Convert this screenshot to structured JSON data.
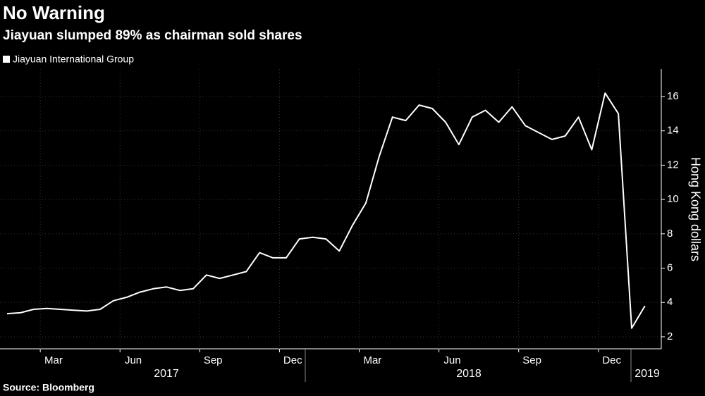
{
  "chart_data": {
    "type": "line",
    "title": "No Warning",
    "subtitle": "Jiayuan slumped 89% as chairman sold shares",
    "source": "Source: Bloomberg",
    "y_label": "Hong Kong dollars",
    "categories": [
      null,
      null,
      null,
      "Mar",
      null,
      null,
      null,
      null,
      null,
      "Jun",
      null,
      null,
      null,
      null,
      null,
      "Sep",
      null,
      null,
      null,
      null,
      null,
      "Dec",
      null,
      null,
      null,
      null,
      null,
      "Mar",
      null,
      null,
      null,
      null,
      null,
      "Jun",
      null,
      null,
      null,
      null,
      null,
      "Sep",
      null,
      null,
      null,
      null,
      null,
      "Dec",
      null,
      null,
      null
    ],
    "years": [
      "2017",
      "2018",
      "2019"
    ],
    "series": [
      {
        "name": "Jiayuan International Group",
        "color": "#ffffff",
        "values": [
          3.35,
          3.4,
          3.6,
          3.65,
          3.6,
          3.55,
          3.5,
          3.6,
          4.1,
          4.3,
          4.6,
          4.8,
          4.9,
          4.7,
          4.8,
          5.6,
          5.4,
          5.6,
          5.8,
          6.9,
          6.6,
          6.6,
          7.7,
          7.8,
          7.7,
          7.0,
          8.5,
          9.8,
          12.5,
          14.8,
          14.6,
          15.5,
          15.3,
          14.5,
          13.2,
          14.8,
          15.2,
          14.5,
          15.4,
          14.3,
          13.9,
          13.5,
          13.7,
          14.8,
          12.9,
          16.2,
          15.0,
          2.5,
          3.8
        ]
      }
    ],
    "ylim": [
      1.3,
      17.6
    ],
    "yticks": [
      2,
      4,
      6,
      8,
      10,
      12,
      14,
      16
    ],
    "grid": true
  }
}
